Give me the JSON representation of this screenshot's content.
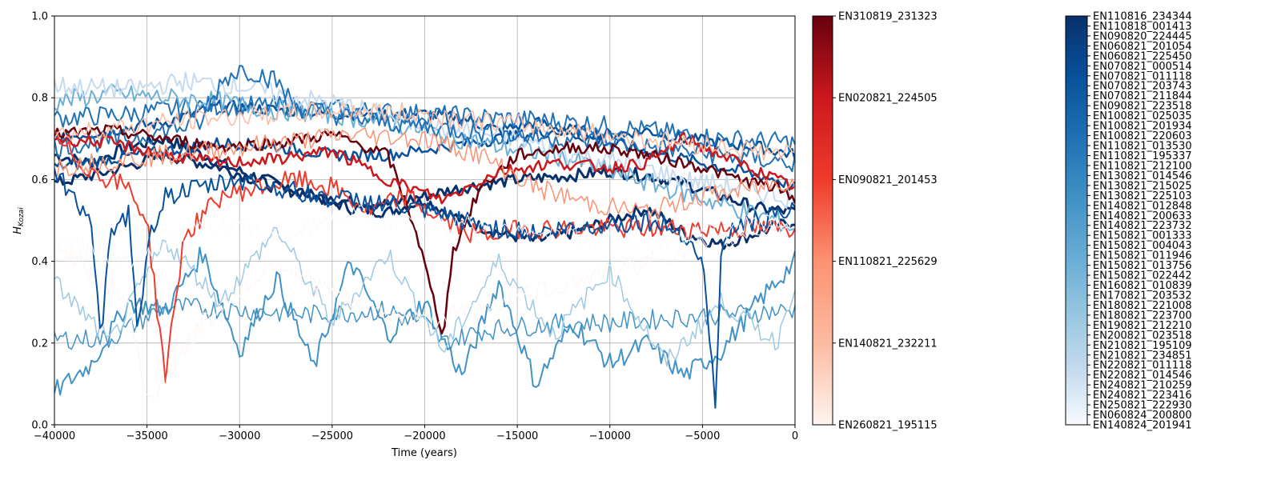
{
  "chart_data": {
    "type": "line",
    "title": "",
    "xlabel": "Time (years)",
    "ylabel_main": "H",
    "ylabel_sub": "Kozai",
    "xlim": [
      -40000,
      0
    ],
    "ylim": [
      0.0,
      1.0
    ],
    "grid": true,
    "xticks": [
      -40000,
      -35000,
      -30000,
      -25000,
      -20000,
      -15000,
      -10000,
      -5000,
      0
    ],
    "xtick_labels": [
      "−40000",
      "−35000",
      "−30000",
      "−25000",
      "−20000",
      "−15000",
      "−10000",
      "−5000",
      "0"
    ],
    "yticks": [
      0.0,
      0.2,
      0.4,
      0.6,
      0.8,
      1.0
    ],
    "ytick_labels": [
      "0.0",
      "0.2",
      "0.4",
      "0.6",
      "0.8",
      "1.0"
    ],
    "colorbar_reds": {
      "labels": [
        "EN310819_231323",
        "EN020821_224505",
        "EN090821_201453",
        "EN110821_225629",
        "EN140821_232211",
        "EN260821_195115"
      ],
      "colors": [
        "#67000d",
        "#cb181d",
        "#ef3b2c",
        "#fc9272",
        "#fcbba1",
        "#fff5f0"
      ]
    },
    "colorbar_blues": {
      "labels": [
        "EN110816_234344",
        "EN110818_001413",
        "EN090820_224445",
        "EN060821_201054",
        "EN060821_225450",
        "EN070821_000514",
        "EN070821_011118",
        "EN070821_203743",
        "EN070821_211844",
        "EN090821_223518",
        "EN100821_025035",
        "EN100821_201934",
        "EN100821_220603",
        "EN110821_013530",
        "EN110821_195337",
        "EN110821_212100",
        "EN130821_014546",
        "EN130821_215025",
        "EN130821_225103",
        "EN140821_012848",
        "EN140821_200633",
        "EN140821_223732",
        "EN150821_001333",
        "EN150821_004043",
        "EN150821_011946",
        "EN150821_013756",
        "EN150821_022442",
        "EN160821_010839",
        "EN170821_203532",
        "EN180821_221008",
        "EN180821_223700",
        "EN190821_212210",
        "EN200821_023518",
        "EN210821_195109",
        "EN210821_234851",
        "EN220821_011118",
        "EN220821_014546",
        "EN240821_210259",
        "EN240821_223416",
        "EN250821_222930",
        "EN060824_200800",
        "EN140824_201941"
      ],
      "colors": [
        "#08306b",
        "#08519c",
        "#2171b5",
        "#4292c6",
        "#6baed6",
        "#9ecae1",
        "#c6dbef",
        "#f7fbff"
      ]
    },
    "series": [
      {
        "color": "#08306b",
        "width": 3,
        "x": [
          -40000,
          -38000,
          -36000,
          -34000,
          -32000,
          -30000,
          -28000,
          -26000,
          -24000,
          -22000,
          -20000,
          -18000,
          -16000,
          -14000,
          -12000,
          -10000,
          -8000,
          -6000,
          -4000,
          -2000,
          0
        ],
        "y": [
          0.66,
          0.64,
          0.68,
          0.7,
          0.66,
          0.62,
          0.59,
          0.56,
          0.53,
          0.52,
          0.55,
          0.5,
          0.47,
          0.45,
          0.47,
          0.5,
          0.53,
          0.47,
          0.44,
          0.47,
          0.5
        ]
      },
      {
        "color": "#08306b",
        "width": 3,
        "x": [
          -40000,
          -37000,
          -34000,
          -31000,
          -28000,
          -25000,
          -22000,
          -20000,
          -18000,
          -15000,
          -12000,
          -10000,
          -8000,
          -6000,
          -4000,
          -2000,
          0
        ],
        "y": [
          0.59,
          0.62,
          0.66,
          0.63,
          0.58,
          0.55,
          0.54,
          0.56,
          0.58,
          0.6,
          0.61,
          0.62,
          0.61,
          0.59,
          0.56,
          0.53,
          0.52
        ]
      },
      {
        "color": "#08519c",
        "width": 2.5,
        "x": [
          -40000,
          -37000,
          -34000,
          -31000,
          -28000,
          -25000,
          -22000,
          -20000,
          -18000,
          -16000,
          -14000,
          -12000,
          -10000,
          -8000,
          -6000,
          -4000,
          -2000,
          0
        ],
        "y": [
          0.7,
          0.72,
          0.74,
          0.78,
          0.77,
          0.76,
          0.76,
          0.76,
          0.75,
          0.72,
          0.74,
          0.72,
          0.71,
          0.72,
          0.7,
          0.69,
          0.68,
          0.66
        ]
      },
      {
        "color": "#2171b5",
        "width": 2,
        "x": [
          -40000,
          -36000,
          -32000,
          -28000,
          -24000,
          -20000,
          -16000,
          -12000,
          -8000,
          -4000,
          0
        ],
        "y": [
          0.75,
          0.76,
          0.78,
          0.78,
          0.77,
          0.76,
          0.75,
          0.74,
          0.72,
          0.7,
          0.69
        ]
      },
      {
        "color": "#08519c",
        "width": 2.5,
        "x": [
          -40000,
          -37000,
          -34000,
          -31000,
          -28000,
          -25000,
          -22000,
          -19000,
          -16000,
          -13000,
          -10000,
          -7000,
          -4000,
          -1000,
          0
        ],
        "y": [
          0.63,
          0.65,
          0.67,
          0.69,
          0.68,
          0.66,
          0.66,
          0.68,
          0.7,
          0.72,
          0.69,
          0.66,
          0.63,
          0.6,
          0.58
        ]
      },
      {
        "color": "#4292c6",
        "width": 2,
        "x": [
          -40000,
          -38000,
          -36000,
          -34000,
          -32000,
          -30000,
          -28000,
          -26000,
          -24000,
          -22000,
          -20000,
          -18000,
          -16000,
          -14000,
          -12000,
          -10000,
          -8000,
          -6000,
          -4000,
          -2000,
          0
        ],
        "y": [
          0.08,
          0.15,
          0.3,
          0.28,
          0.42,
          0.18,
          0.36,
          0.14,
          0.4,
          0.22,
          0.3,
          0.12,
          0.35,
          0.1,
          0.25,
          0.15,
          0.2,
          0.12,
          0.18,
          0.3,
          0.4
        ]
      },
      {
        "color": "#4292c6",
        "width": 1.5,
        "x": [
          -40000,
          -37000,
          -34000,
          -30000,
          -26000,
          -22000,
          -20000,
          -19000,
          -17000,
          -15000,
          -12000,
          -10000,
          -7000,
          -4000,
          0
        ],
        "y": [
          0.21,
          0.21,
          0.29,
          0.28,
          0.27,
          0.28,
          0.25,
          0.2,
          0.23,
          0.24,
          0.25,
          0.25,
          0.26,
          0.27,
          0.28
        ]
      },
      {
        "color": "#6baed6",
        "width": 2,
        "x": [
          -40000,
          -37000,
          -34000,
          -31000,
          -28000,
          -25000,
          -22000,
          -19000,
          -16000,
          -13000,
          -10000,
          -7000,
          -4000,
          -1000,
          0
        ],
        "y": [
          0.79,
          0.81,
          0.8,
          0.79,
          0.77,
          0.76,
          0.74,
          0.71,
          0.68,
          0.66,
          0.62,
          0.58,
          0.54,
          0.5,
          0.48
        ]
      },
      {
        "color": "#c6dbef",
        "width": 2,
        "x": [
          -40000,
          -36000,
          -33000,
          -30000,
          -27000,
          -24000,
          -21000,
          -18000,
          -15000,
          -12000,
          -9000,
          -6000,
          -3000,
          0
        ],
        "y": [
          0.83,
          0.82,
          0.84,
          0.83,
          0.8,
          0.78,
          0.74,
          0.72,
          0.7,
          0.66,
          0.64,
          0.6,
          0.58,
          0.55
        ]
      },
      {
        "color": "#2171b5",
        "width": 2,
        "x": [
          -40000,
          -36000,
          -32000,
          -31000,
          -30000,
          -29000,
          -28000,
          -27000,
          -24000,
          -20000,
          -16000,
          -12000,
          -8000,
          -4000,
          0
        ],
        "y": [
          0.68,
          0.7,
          0.74,
          0.84,
          0.87,
          0.86,
          0.84,
          0.78,
          0.75,
          0.73,
          0.71,
          0.7,
          0.68,
          0.66,
          0.64
        ]
      },
      {
        "color": "#9ecae1",
        "width": 1.5,
        "x": [
          -40000,
          -37000,
          -34000,
          -31000,
          -28000,
          -25000,
          -22000,
          -19000,
          -16000,
          -13000,
          -10000,
          -7000,
          -4000,
          -1000,
          0
        ],
        "y": [
          0.35,
          0.2,
          0.45,
          0.3,
          0.48,
          0.25,
          0.42,
          0.18,
          0.4,
          0.22,
          0.38,
          0.15,
          0.3,
          0.2,
          0.35
        ]
      },
      {
        "color": "#67000d",
        "width": 2.5,
        "x": [
          -40000,
          -37000,
          -34000,
          -31000,
          -28000,
          -25000,
          -22000,
          -20500,
          -19500,
          -19000,
          -18500,
          -17000,
          -15000,
          -12000,
          -9000,
          -7000,
          -5000,
          -3000,
          -1000,
          0
        ],
        "y": [
          0.71,
          0.72,
          0.7,
          0.68,
          0.69,
          0.71,
          0.66,
          0.48,
          0.3,
          0.22,
          0.42,
          0.58,
          0.66,
          0.68,
          0.67,
          0.65,
          0.63,
          0.6,
          0.58,
          0.55
        ]
      },
      {
        "color": "#cb181d",
        "width": 2.5,
        "x": [
          -40000,
          -37000,
          -34000,
          -31000,
          -28000,
          -25000,
          -22000,
          -19000,
          -16000,
          -13000,
          -10000,
          -8000,
          -6000,
          -4000,
          -2000,
          0
        ],
        "y": [
          0.7,
          0.69,
          0.66,
          0.64,
          0.65,
          0.67,
          0.6,
          0.55,
          0.62,
          0.64,
          0.63,
          0.64,
          0.7,
          0.66,
          0.62,
          0.58
        ]
      },
      {
        "color": "#ef3b2c",
        "width": 2,
        "x": [
          -40000,
          -38000,
          -36000,
          -35000,
          -34500,
          -34000,
          -33000,
          -31000,
          -29000,
          -27000,
          -25000,
          -23000,
          -21000,
          -19000,
          -17000,
          -15000
        ],
        "y": [
          0.7,
          0.62,
          0.58,
          0.5,
          0.3,
          0.12,
          0.46,
          0.56,
          0.58,
          0.6,
          0.58,
          0.52,
          0.56,
          0.5,
          0.46,
          0.48
        ]
      },
      {
        "color": "#fc9272",
        "width": 1.5,
        "x": [
          -40000,
          -36000,
          -32000,
          -28000,
          -24000,
          -20000,
          -17000,
          -14000,
          -11000,
          -8000,
          -5000,
          -2000,
          0
        ],
        "y": [
          0.63,
          0.65,
          0.67,
          0.69,
          0.71,
          0.7,
          0.66,
          0.58,
          0.54,
          0.52,
          0.56,
          0.58,
          0.6
        ]
      },
      {
        "color": "#fcbba1",
        "width": 1.5,
        "x": [
          -40000,
          -36000,
          -32000,
          -28000,
          -24000,
          -20000,
          -16000,
          -12000,
          -8000,
          -4000,
          0
        ],
        "y": [
          0.71,
          0.73,
          0.75,
          0.76,
          0.77,
          0.76,
          0.74,
          0.72,
          0.7,
          0.68,
          0.66
        ]
      },
      {
        "color": "#fff5f0",
        "width": 1,
        "x": [
          -40000,
          -36000,
          -35000,
          -32000,
          -28000,
          -24000,
          -20000,
          -16000,
          -12000,
          -8000,
          -4000,
          0
        ],
        "y": [
          0.45,
          0.3,
          0.05,
          0.25,
          0.4,
          0.3,
          0.25,
          0.3,
          0.35,
          0.4,
          0.45,
          0.5
        ]
      },
      {
        "color": "#08519c",
        "width": 2,
        "x": [
          -40000,
          -38000,
          -37500,
          -37000,
          -36000,
          -35500,
          -35000,
          -34000,
          -32000,
          -30000,
          -28000,
          -26000,
          -24000,
          -22000,
          -20000,
          -18000,
          -16000,
          -14000,
          -12000,
          -10000,
          -8000,
          -6000,
          -5000,
          -4300,
          -4000,
          -3500,
          -2000,
          0
        ],
        "y": [
          0.62,
          0.5,
          0.2,
          0.45,
          0.52,
          0.2,
          0.45,
          0.56,
          0.58,
          0.6,
          0.58,
          0.56,
          0.55,
          0.54,
          0.52,
          0.5,
          0.48,
          0.47,
          0.48,
          0.49,
          0.5,
          0.47,
          0.4,
          0.06,
          0.4,
          0.48,
          0.5,
          0.52
        ]
      },
      {
        "color": "#f7fbff",
        "width": 1,
        "x": [
          -40000,
          -36000,
          -32000,
          -28000,
          -24000,
          -20000,
          -16000,
          -12000,
          -8000,
          -4000,
          0
        ],
        "y": [
          0.45,
          0.4,
          0.5,
          0.46,
          0.52,
          0.48,
          0.5,
          0.46,
          0.44,
          0.48,
          0.5
        ]
      }
    ]
  }
}
